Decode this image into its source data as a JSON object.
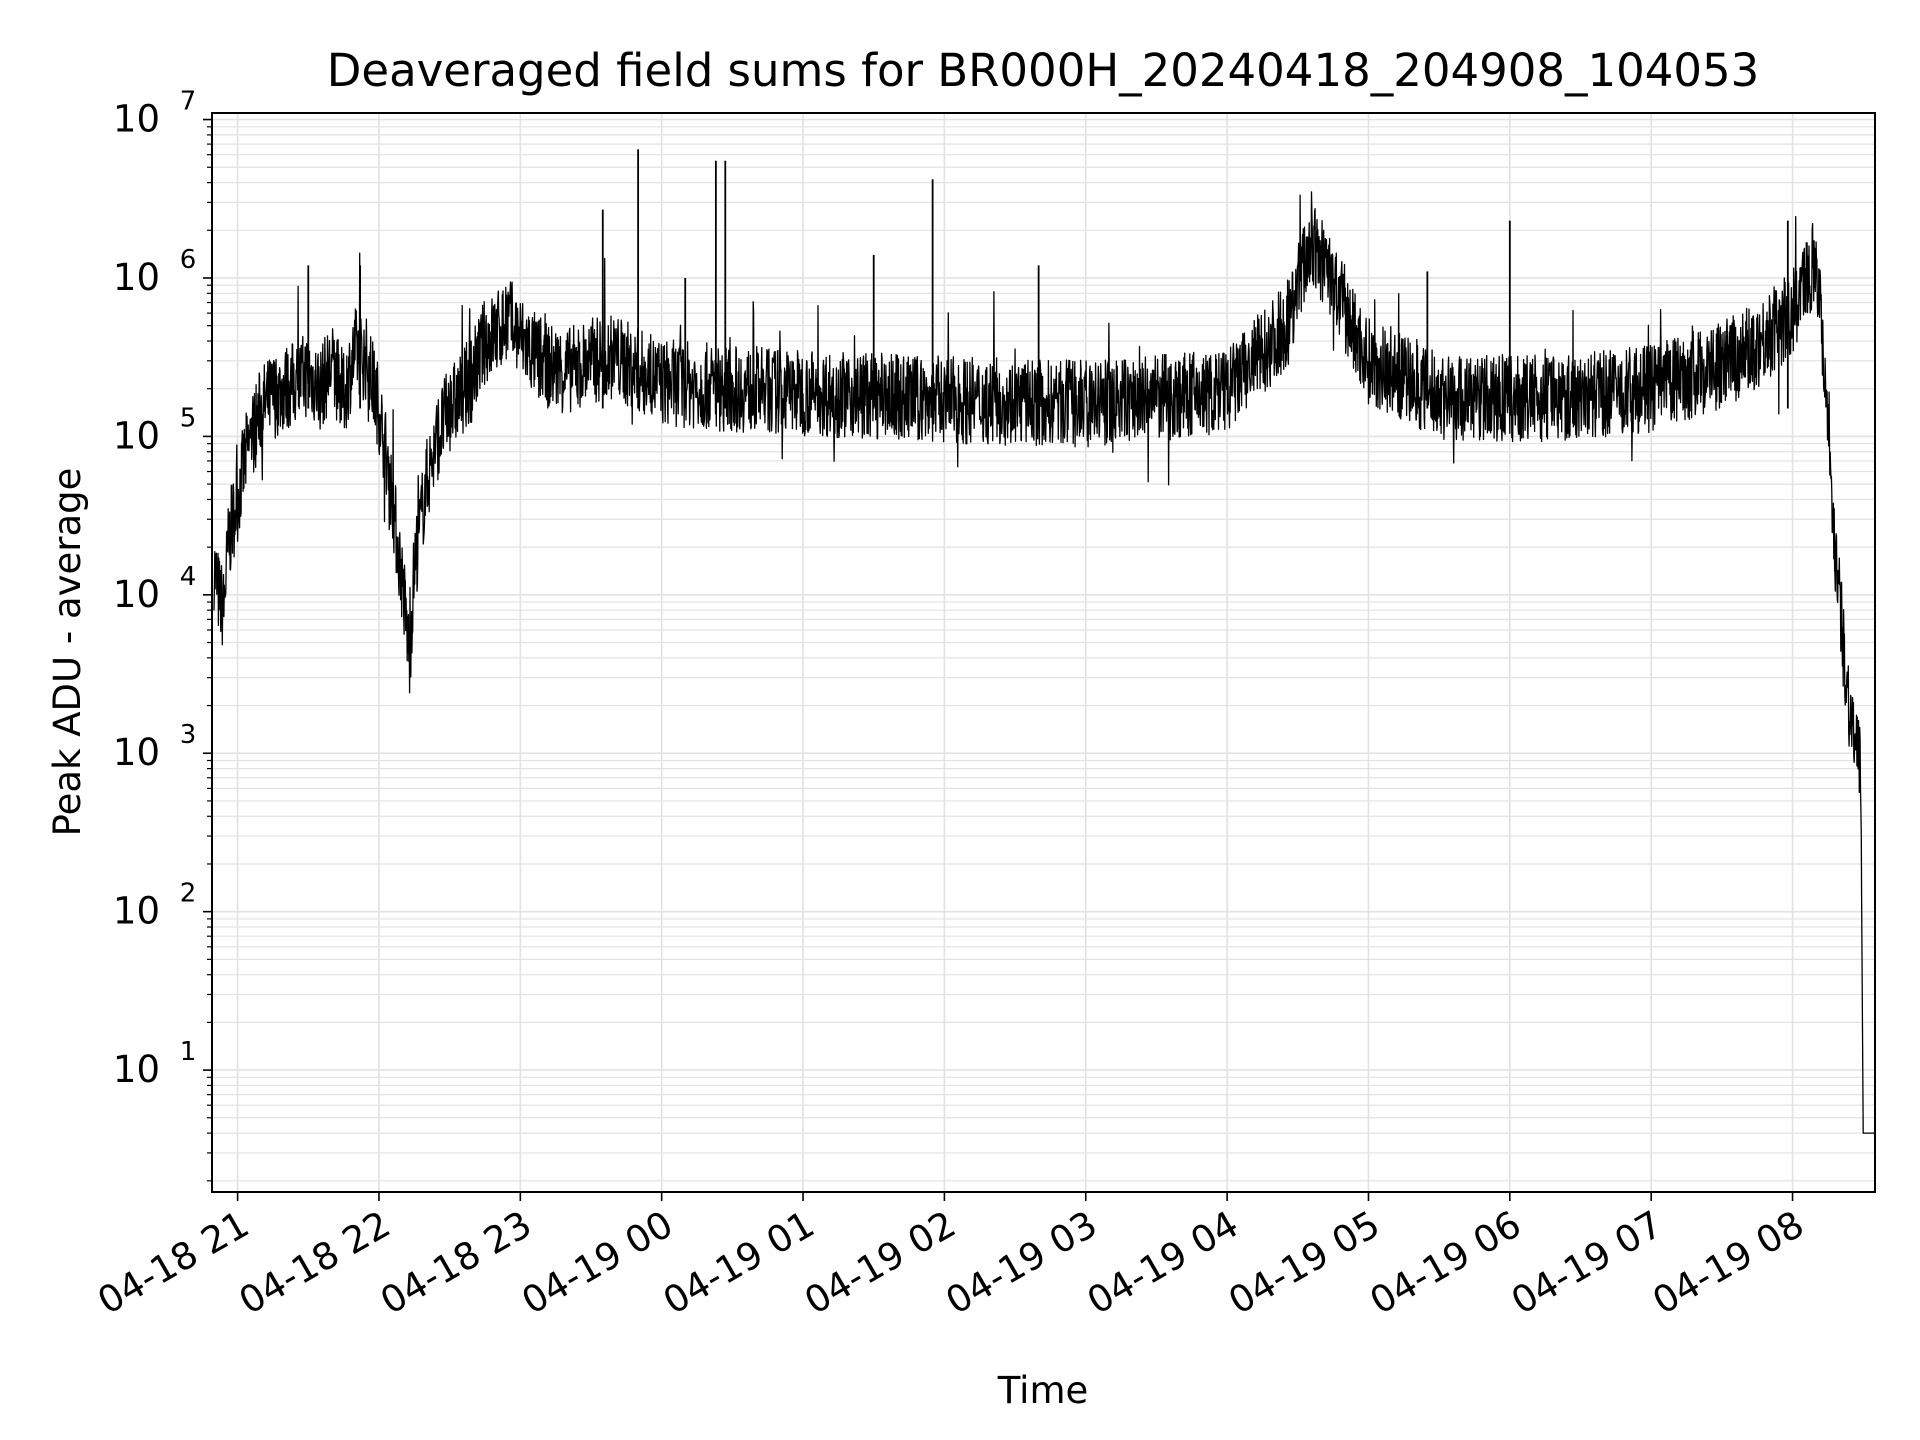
{
  "chart_data": {
    "type": "line",
    "title": "Deaveraged field sums for BR000H_20240418_204908_104053",
    "xlabel": "Time",
    "ylabel": "Peak ADU - average",
    "x_range": [
      "2024-04-18T20:49:08",
      "2024-04-19T08:35:00"
    ],
    "y_scale": "log",
    "ylim": [
      1.7,
      11000000
    ],
    "grid": true,
    "legend": "none",
    "line_color": "#000000",
    "grid_color": "#e2e2e2",
    "xticks": [
      {
        "value": "2024-04-18T21:00:00",
        "label": "04-18 21"
      },
      {
        "value": "2024-04-18T22:00:00",
        "label": "04-18 22"
      },
      {
        "value": "2024-04-18T23:00:00",
        "label": "04-18 23"
      },
      {
        "value": "2024-04-19T00:00:00",
        "label": "04-19 00"
      },
      {
        "value": "2024-04-19T01:00:00",
        "label": "04-19 01"
      },
      {
        "value": "2024-04-19T02:00:00",
        "label": "04-19 02"
      },
      {
        "value": "2024-04-19T03:00:00",
        "label": "04-19 03"
      },
      {
        "value": "2024-04-19T04:00:00",
        "label": "04-19 04"
      },
      {
        "value": "2024-04-19T05:00:00",
        "label": "04-19 05"
      },
      {
        "value": "2024-04-19T06:00:00",
        "label": "04-19 06"
      },
      {
        "value": "2024-04-19T07:00:00",
        "label": "04-19 07"
      },
      {
        "value": "2024-04-19T08:00:00",
        "label": "04-19 08"
      }
    ],
    "yticks": [
      {
        "value": 10,
        "base": "10",
        "exp": "1"
      },
      {
        "value": 100,
        "base": "10",
        "exp": "2"
      },
      {
        "value": 1000,
        "base": "10",
        "exp": "3"
      },
      {
        "value": 10000,
        "base": "10",
        "exp": "4"
      },
      {
        "value": 100000,
        "base": "10",
        "exp": "5"
      },
      {
        "value": 1000000,
        "base": "10",
        "exp": "6"
      },
      {
        "value": 10000000,
        "base": "10",
        "exp": "7"
      }
    ],
    "series": [
      {
        "x": [
          "2024-04-18T20:50:00",
          "2024-04-18T20:52:00",
          "2024-04-18T20:54:00",
          "2024-04-18T20:56:00",
          "2024-04-18T20:58:00",
          "2024-04-18T21:00:00",
          "2024-04-18T21:03:00",
          "2024-04-18T21:06:00",
          "2024-04-18T21:10:00",
          "2024-04-18T21:15:00",
          "2024-04-18T21:20:00",
          "2024-04-18T21:25:00",
          "2024-04-18T21:30:00",
          "2024-04-18T21:35:00",
          "2024-04-18T21:40:00",
          "2024-04-18T21:45:00",
          "2024-04-18T21:50:00",
          "2024-04-18T21:55:00",
          "2024-04-18T22:00:00",
          "2024-04-18T22:05:00",
          "2024-04-18T22:08:00",
          "2024-04-18T22:10:00",
          "2024-04-18T22:13:00",
          "2024-04-18T22:15:00",
          "2024-04-18T22:20:00",
          "2024-04-18T22:25:00",
          "2024-04-18T22:30:00",
          "2024-04-18T22:35:00",
          "2024-04-18T22:40:00",
          "2024-04-18T22:45:00",
          "2024-04-18T22:50:00",
          "2024-04-18T22:55:00",
          "2024-04-18T23:00:00",
          "2024-04-18T23:10:00",
          "2024-04-18T23:20:00",
          "2024-04-18T23:30:00",
          "2024-04-18T23:40:00",
          "2024-04-18T23:50:00",
          "2024-04-19T00:00:00",
          "2024-04-19T00:30:00",
          "2024-04-19T01:00:00",
          "2024-04-19T01:30:00",
          "2024-04-19T02:00:00",
          "2024-04-19T02:30:00",
          "2024-04-19T03:00:00",
          "2024-04-19T03:30:00",
          "2024-04-19T04:00:00",
          "2024-04-19T04:25:00",
          "2024-04-19T04:35:00",
          "2024-04-19T04:42:00",
          "2024-04-19T04:50:00",
          "2024-04-19T05:00:00",
          "2024-04-19T05:30:00",
          "2024-04-19T06:00:00",
          "2024-04-19T06:30:00",
          "2024-04-19T07:00:00",
          "2024-04-19T07:30:00",
          "2024-04-19T07:45:00",
          "2024-04-19T08:00:00",
          "2024-04-19T08:10:00",
          "2024-04-19T08:15:00",
          "2024-04-19T08:18:00",
          "2024-04-19T08:21:00",
          "2024-04-19T08:24:00",
          "2024-04-19T08:27:00",
          "2024-04-19T08:29:00",
          "2024-04-19T08:30:00",
          "2024-04-19T08:31:00",
          "2024-04-19T08:35:00"
        ],
        "y": [
          15000,
          10000,
          8000,
          20000,
          30000,
          40000,
          70000,
          100000,
          150000,
          180000,
          200000,
          220000,
          250000,
          200000,
          280000,
          180000,
          350000,
          300000,
          150000,
          50000,
          20000,
          12000,
          4000,
          15000,
          50000,
          100000,
          150000,
          180000,
          250000,
          400000,
          450000,
          550000,
          420000,
          280000,
          260000,
          300000,
          320000,
          260000,
          220000,
          200000,
          190000,
          180000,
          170000,
          165000,
          160000,
          175000,
          190000,
          500000,
          1600000,
          1200000,
          600000,
          300000,
          180000,
          170000,
          180000,
          200000,
          280000,
          380000,
          600000,
          1400000,
          150000,
          20000,
          6000,
          2000,
          1100,
          700,
          4,
          4,
          4
        ]
      }
    ],
    "spikes": [
      {
        "x": "2024-04-18T23:50:00",
        "y": 6500000
      },
      {
        "x": "2024-04-19T00:23:00",
        "y": 5500000
      },
      {
        "x": "2024-04-19T00:27:00",
        "y": 5500000
      },
      {
        "x": "2024-04-19T01:55:00",
        "y": 4200000
      },
      {
        "x": "2024-04-18T23:35:00",
        "y": 2700000
      },
      {
        "x": "2024-04-19T06:00:00",
        "y": 2300000
      },
      {
        "x": "2024-04-19T07:58:00",
        "y": 2300000
      },
      {
        "x": "2024-04-18T21:30:00",
        "y": 1200000
      },
      {
        "x": "2024-04-18T21:52:00",
        "y": 1200000
      },
      {
        "x": "2024-04-19T02:40:00",
        "y": 1200000
      },
      {
        "x": "2024-04-19T05:25:00",
        "y": 1100000
      },
      {
        "x": "2024-04-19T01:30:00",
        "y": 1400000
      },
      {
        "x": "2024-04-19T00:10:00",
        "y": 1000000
      }
    ]
  }
}
